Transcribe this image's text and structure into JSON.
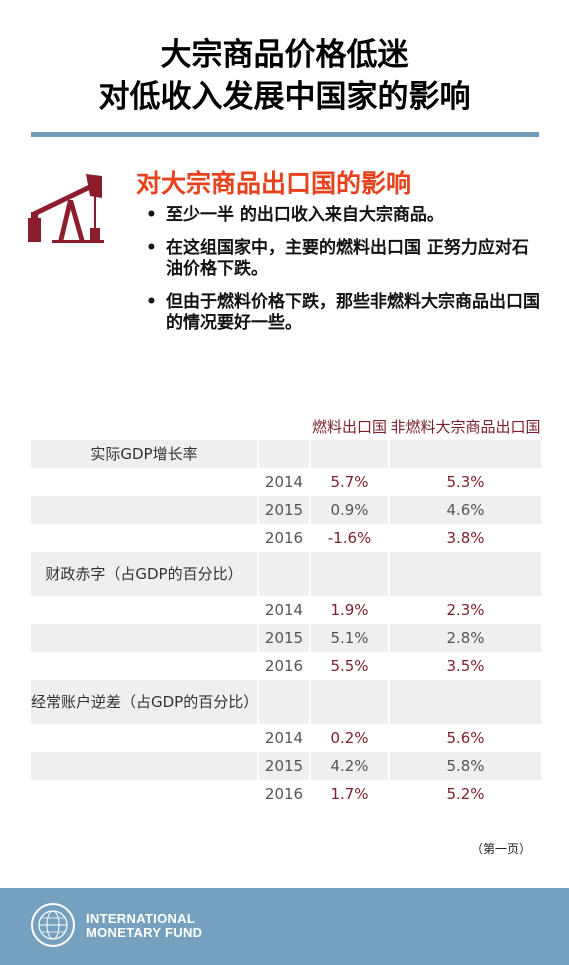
{
  "title": {
    "line1": "大宗商品价格低迷",
    "line2": "对低收入发展中国家的影响"
  },
  "section": {
    "heading": "对大宗商品出口国的影响",
    "icon": "oil-pump-icon",
    "bullets": [
      "至少一半 的出口收入来自大宗商品。",
      "在这组国家中，主要的燃料出口国 正努力应对石油价格下跌。",
      "但由于燃料价格下跌，那些非燃料大宗商品出口国的情况要好一些。"
    ]
  },
  "table": {
    "columns": [
      "燃料出口国",
      "非燃料大宗商品出口国"
    ],
    "groups": [
      {
        "label": "实际GDP增长率",
        "rows": [
          {
            "year": "2014",
            "fuel": "5.7%",
            "nonfuel": "5.3%"
          },
          {
            "year": "2015",
            "fuel": "0.9%",
            "nonfuel": "4.6%"
          },
          {
            "year": "2016",
            "fuel": "-1.6%",
            "nonfuel": "3.8%"
          }
        ]
      },
      {
        "label": "财政赤字（占GDP的百分比）",
        "rows": [
          {
            "year": "2014",
            "fuel": "1.9%",
            "nonfuel": "2.3%"
          },
          {
            "year": "2015",
            "fuel": "5.1%",
            "nonfuel": "2.8%"
          },
          {
            "year": "2016",
            "fuel": "5.5%",
            "nonfuel": "3.5%"
          }
        ]
      },
      {
        "label": "经常账户逆差（占GDP的百分比）",
        "rows": [
          {
            "year": "2014",
            "fuel": "0.2%",
            "nonfuel": "5.6%"
          },
          {
            "year": "2015",
            "fuel": "4.2%",
            "nonfuel": "5.8%"
          },
          {
            "year": "2016",
            "fuel": "1.7%",
            "nonfuel": "5.2%"
          }
        ]
      }
    ]
  },
  "footnote": "（第一页）",
  "footer": {
    "logo": "imf-seal-icon",
    "name_line1": "INTERNATIONAL",
    "name_line2": "MONETARY FUND"
  },
  "colors": {
    "accent_red": "#e8411c",
    "dark_red": "#7a1f2b",
    "rule_blue": "#6e9bb9",
    "footer_blue": "#75a1bf"
  }
}
